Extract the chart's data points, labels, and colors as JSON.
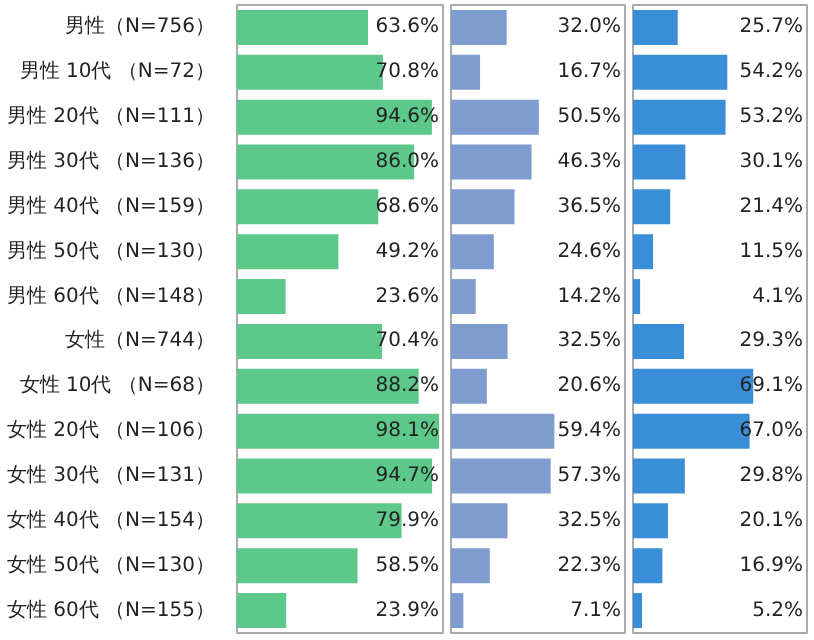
{
  "chart_data": [
    {
      "type": "bar",
      "orientation": "horizontal",
      "tick_labels": "y",
      "xlim": [
        0,
        100
      ],
      "color": "#5cc88a",
      "categories": [
        "男性（N=756）",
        "男性 10代 （N=72）",
        "男性 20代 （N=111）",
        "男性 30代 （N=136）",
        "男性 40代 （N=159）",
        "男性 50代 （N=130）",
        "男性 60代 （N=148）",
        "女性（N=744）",
        "女性 10代 （N=68）",
        "女性 20代 （N=106）",
        "女性 30代 （N=131）",
        "女性 40代 （N=154）",
        "女性 50代 （N=130）",
        "女性 60代 （N=155）"
      ],
      "values": [
        63.6,
        70.8,
        94.6,
        86.0,
        68.6,
        49.2,
        23.6,
        70.4,
        88.2,
        98.1,
        94.7,
        79.9,
        58.5,
        23.9
      ],
      "value_labels": [
        "63.6%",
        "70.8%",
        "94.6%",
        "86.0%",
        "68.6%",
        "49.2%",
        "23.6%",
        "70.4%",
        "88.2%",
        "98.1%",
        "94.7%",
        "79.9%",
        "58.5%",
        "23.9%"
      ]
    },
    {
      "type": "bar",
      "orientation": "horizontal",
      "tick_labels": false,
      "xlim": [
        0,
        100
      ],
      "color": "#7f9ccf",
      "values": [
        32.0,
        16.7,
        50.5,
        46.3,
        36.5,
        24.6,
        14.2,
        32.5,
        20.6,
        59.4,
        57.3,
        32.5,
        22.3,
        7.1
      ],
      "value_labels": [
        "32.0%",
        "16.7%",
        "50.5%",
        "46.3%",
        "36.5%",
        "24.6%",
        "14.2%",
        "32.5%",
        "20.6%",
        "59.4%",
        "57.3%",
        "32.5%",
        "22.3%",
        "7.1%"
      ]
    },
    {
      "type": "bar",
      "orientation": "horizontal",
      "tick_labels": false,
      "xlim": [
        0,
        100
      ],
      "color": "#3a8ed8",
      "values": [
        25.7,
        54.2,
        53.2,
        30.1,
        21.4,
        11.5,
        4.1,
        29.3,
        69.1,
        67.0,
        29.8,
        20.1,
        16.9,
        5.2
      ],
      "value_labels": [
        "25.7%",
        "54.2%",
        "53.2%",
        "30.1%",
        "21.4%",
        "11.5%",
        "4.1%",
        "29.3%",
        "69.1%",
        "67.0%",
        "29.8%",
        "20.1%",
        "16.9%",
        "5.2%"
      ]
    }
  ]
}
